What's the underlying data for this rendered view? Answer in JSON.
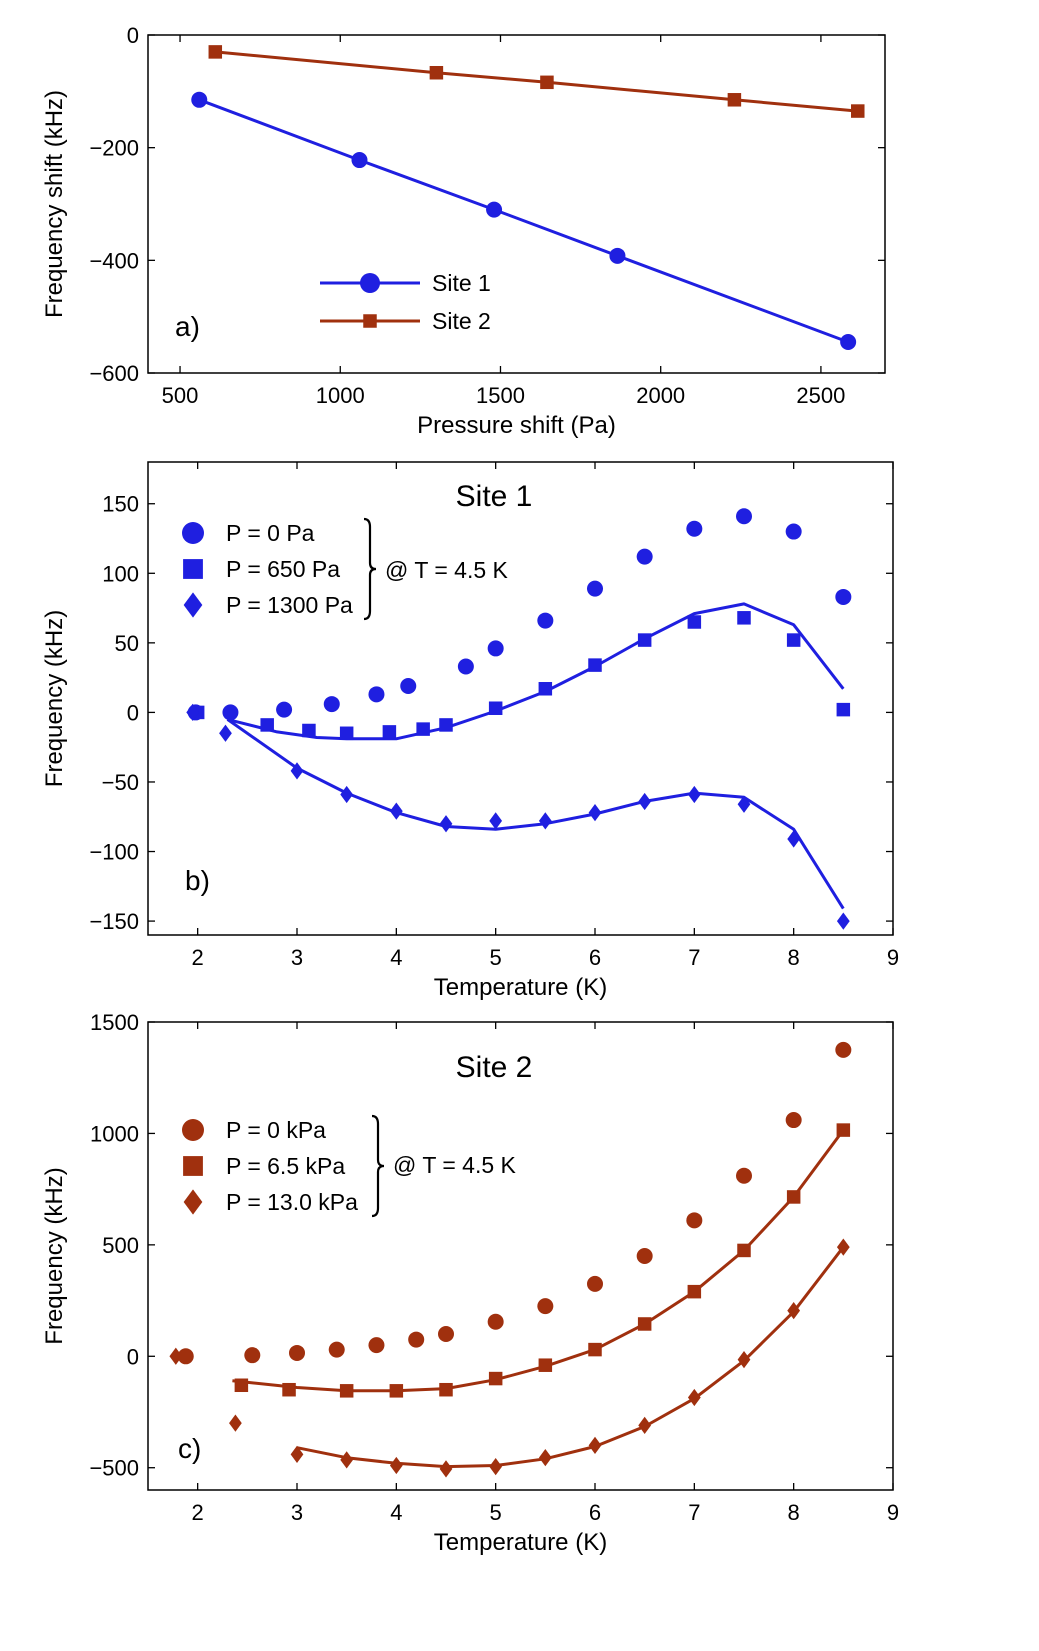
{
  "colors": {
    "site1": "#1f1fe0",
    "site2": "#a0300e",
    "axis": "#000000"
  },
  "chart_data": [
    {
      "type": "line",
      "panel_label": "a)",
      "title": "",
      "xlabel": "Pressure shift (Pa)",
      "ylabel": "Frequency shift (kHz)",
      "xlim": [
        400,
        2700
      ],
      "ylim": [
        -600,
        0
      ],
      "xticks": [
        500,
        1000,
        1500,
        2000,
        2500
      ],
      "yticks": [
        0,
        -200,
        -400,
        -600
      ],
      "xtick_labels": [
        "500",
        "1000",
        "1500",
        "2000",
        "2500"
      ],
      "ytick_labels": [
        "0",
        "−200",
        "−400",
        "−600"
      ],
      "grid": false,
      "legend_placement": "lower-center",
      "series": [
        {
          "name": "Site 1",
          "marker": "circle",
          "color": "#1f1fe0",
          "x": [
            560,
            1060,
            1480,
            1865,
            2585
          ],
          "y": [
            -115,
            -222,
            -310,
            -392,
            -545
          ]
        },
        {
          "name": "Site 2",
          "marker": "square",
          "color": "#a0300e",
          "x": [
            610,
            1300,
            1645,
            2230,
            2615
          ],
          "y": [
            -30,
            -67,
            -84,
            -115,
            -135
          ]
        }
      ]
    },
    {
      "type": "scatter",
      "panel_label": "b)",
      "title": "Site 1",
      "xlabel": "Temperature (K)",
      "ylabel": "Frequency (kHz)",
      "xlim": [
        1.5,
        9
      ],
      "ylim": [
        -160,
        180
      ],
      "xticks": [
        2,
        3,
        4,
        5,
        6,
        7,
        8,
        9
      ],
      "yticks": [
        150,
        100,
        50,
        0,
        -50,
        -100,
        -150
      ],
      "xtick_labels": [
        "2",
        "3",
        "4",
        "5",
        "6",
        "7",
        "8",
        "9"
      ],
      "ytick_labels": [
        "150",
        "100",
        "50",
        "0",
        "−50",
        "−100",
        "−150"
      ],
      "grid": false,
      "legend_placement": "top-left",
      "legend_note": "@ T = 4.5 K",
      "series": [
        {
          "name": "P = 0 Pa",
          "marker": "circle",
          "color": "#1f1fe0",
          "x": [
            1.98,
            2.33,
            2.87,
            3.35,
            3.8,
            4.12,
            4.7,
            5.0,
            5.5,
            6.0,
            6.5,
            7.0,
            7.5,
            8.0,
            8.5
          ],
          "y": [
            0,
            0,
            2,
            6,
            13,
            19,
            33,
            46,
            66,
            89,
            112,
            132,
            141,
            130,
            83
          ]
        },
        {
          "name": "P = 650 Pa",
          "marker": "square",
          "color": "#1f1fe0",
          "x": [
            2.0,
            2.7,
            3.12,
            3.5,
            3.93,
            4.27,
            4.5,
            5.0,
            5.5,
            6.0,
            6.5,
            7.0,
            7.5,
            8.0,
            8.5
          ],
          "y": [
            0,
            -9,
            -13,
            -15,
            -14,
            -12,
            -9,
            3,
            17,
            34,
            52,
            65,
            68,
            52,
            2
          ]
        },
        {
          "name": "P = 1300 Pa",
          "marker": "diamond",
          "color": "#1f1fe0",
          "x": [
            1.95,
            2.28,
            3.0,
            3.5,
            4.0,
            4.5,
            5.0,
            5.5,
            6.0,
            6.5,
            7.0,
            7.5,
            8.0,
            8.5
          ],
          "y": [
            0,
            -15,
            -42,
            -59,
            -71,
            -80,
            -78,
            -78,
            -72,
            -64,
            -59,
            -66,
            -91,
            -150
          ]
        }
      ],
      "fits": [
        {
          "of": "P = 650 Pa",
          "x": [
            2.3,
            2.8,
            3.2,
            3.5,
            4.0,
            4.5,
            5.0,
            5.5,
            6.0,
            6.5,
            7.0,
            7.5,
            8.0,
            8.5
          ],
          "y": [
            -5,
            -14,
            -18,
            -19,
            -19,
            -11,
            1,
            15,
            33,
            53,
            71,
            78,
            63,
            17
          ]
        },
        {
          "of": "P = 1300 Pa",
          "x": [
            2.3,
            3.0,
            3.5,
            4.0,
            4.5,
            5.0,
            5.5,
            6.0,
            6.5,
            7.0,
            7.5,
            8.0,
            8.5
          ],
          "y": [
            -5,
            -40,
            -58,
            -72,
            -82,
            -84,
            -80,
            -73,
            -64,
            -58,
            -61,
            -84,
            -141
          ]
        }
      ]
    },
    {
      "type": "scatter",
      "panel_label": "c)",
      "title": "Site 2",
      "xlabel": "Temperature (K)",
      "ylabel": "Frequency (kHz)",
      "xlim": [
        1.5,
        9
      ],
      "ylim": [
        -600,
        1500
      ],
      "xticks": [
        2,
        3,
        4,
        5,
        6,
        7,
        8,
        9
      ],
      "yticks": [
        1500,
        1000,
        500,
        0,
        -500
      ],
      "xtick_labels": [
        "2",
        "3",
        "4",
        "5",
        "6",
        "7",
        "8",
        "9"
      ],
      "ytick_labels": [
        "1500",
        "1000",
        "500",
        "0",
        "−500"
      ],
      "grid": false,
      "legend_placement": "top-left",
      "legend_note": "@ T = 4.5 K",
      "series": [
        {
          "name": "P = 0 kPa",
          "marker": "circle",
          "color": "#a0300e",
          "x": [
            1.88,
            2.55,
            3.0,
            3.4,
            3.8,
            4.2,
            4.5,
            5.0,
            5.5,
            6.0,
            6.5,
            7.0,
            7.5,
            8.0,
            8.5
          ],
          "y": [
            0,
            5,
            15,
            30,
            50,
            75,
            100,
            155,
            225,
            325,
            450,
            610,
            810,
            1060,
            1375
          ]
        },
        {
          "name": "P = 6.5 kPa",
          "marker": "square",
          "color": "#a0300e",
          "x": [
            2.44,
            2.92,
            3.5,
            4.0,
            4.5,
            5.0,
            5.5,
            6.0,
            6.5,
            7.0,
            7.5,
            8.0,
            8.5
          ],
          "y": [
            -130,
            -150,
            -155,
            -155,
            -150,
            -100,
            -40,
            30,
            145,
            290,
            475,
            715,
            1015
          ]
        },
        {
          "name": "P = 13.0 kPa",
          "marker": "diamond",
          "color": "#a0300e",
          "x": [
            1.78,
            2.38,
            3.0,
            3.5,
            4.0,
            4.5,
            5.0,
            5.5,
            6.0,
            6.5,
            7.0,
            7.5,
            8.0,
            8.5
          ],
          "y": [
            0,
            -300,
            -440,
            -465,
            -490,
            -505,
            -495,
            -455,
            -400,
            -310,
            -185,
            -15,
            205,
            490
          ]
        }
      ],
      "fits": [
        {
          "of": "P = 6.5 kPa",
          "x": [
            2.35,
            3.0,
            3.5,
            4.0,
            4.5,
            5.0,
            5.5,
            6.0,
            6.5,
            7.0,
            7.5,
            8.0,
            8.5
          ],
          "y": [
            -110,
            -140,
            -155,
            -155,
            -145,
            -105,
            -45,
            30,
            145,
            290,
            475,
            715,
            1015
          ]
        },
        {
          "of": "P = 13.0 kPa",
          "x": [
            3.0,
            3.5,
            4.0,
            4.5,
            5.0,
            5.5,
            6.0,
            6.5,
            7.0,
            7.5,
            8.0,
            8.5
          ],
          "y": [
            -410,
            -455,
            -480,
            -495,
            -490,
            -460,
            -405,
            -315,
            -190,
            -20,
            200,
            490
          ]
        }
      ]
    }
  ]
}
